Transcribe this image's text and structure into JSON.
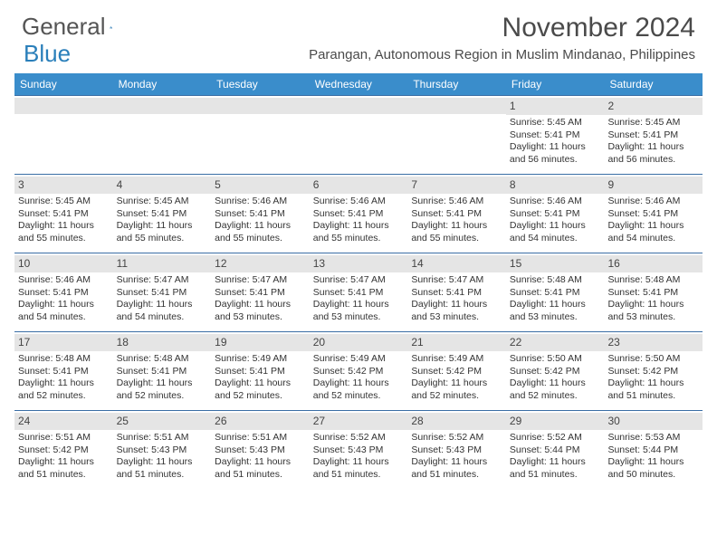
{
  "logo": {
    "text1": "General",
    "text2": "Blue"
  },
  "title": "November 2024",
  "location": "Parangan, Autonomous Region in Muslim Mindanao, Philippines",
  "colors": {
    "header_bar": "#3a8dcb",
    "week_border": "#3a6ea5",
    "date_bg": "#e5e5e5",
    "text": "#333333",
    "title_text": "#4a4a4a",
    "logo_blue": "#2a7fba"
  },
  "dayNames": [
    "Sunday",
    "Monday",
    "Tuesday",
    "Wednesday",
    "Thursday",
    "Friday",
    "Saturday"
  ],
  "weeks": [
    [
      {
        "blank": true
      },
      {
        "blank": true
      },
      {
        "blank": true
      },
      {
        "blank": true
      },
      {
        "blank": true
      },
      {
        "date": "1",
        "sunrise": "Sunrise: 5:45 AM",
        "sunset": "Sunset: 5:41 PM",
        "daylight": "Daylight: 11 hours and 56 minutes."
      },
      {
        "date": "2",
        "sunrise": "Sunrise: 5:45 AM",
        "sunset": "Sunset: 5:41 PM",
        "daylight": "Daylight: 11 hours and 56 minutes."
      }
    ],
    [
      {
        "date": "3",
        "sunrise": "Sunrise: 5:45 AM",
        "sunset": "Sunset: 5:41 PM",
        "daylight": "Daylight: 11 hours and 55 minutes."
      },
      {
        "date": "4",
        "sunrise": "Sunrise: 5:45 AM",
        "sunset": "Sunset: 5:41 PM",
        "daylight": "Daylight: 11 hours and 55 minutes."
      },
      {
        "date": "5",
        "sunrise": "Sunrise: 5:46 AM",
        "sunset": "Sunset: 5:41 PM",
        "daylight": "Daylight: 11 hours and 55 minutes."
      },
      {
        "date": "6",
        "sunrise": "Sunrise: 5:46 AM",
        "sunset": "Sunset: 5:41 PM",
        "daylight": "Daylight: 11 hours and 55 minutes."
      },
      {
        "date": "7",
        "sunrise": "Sunrise: 5:46 AM",
        "sunset": "Sunset: 5:41 PM",
        "daylight": "Daylight: 11 hours and 55 minutes."
      },
      {
        "date": "8",
        "sunrise": "Sunrise: 5:46 AM",
        "sunset": "Sunset: 5:41 PM",
        "daylight": "Daylight: 11 hours and 54 minutes."
      },
      {
        "date": "9",
        "sunrise": "Sunrise: 5:46 AM",
        "sunset": "Sunset: 5:41 PM",
        "daylight": "Daylight: 11 hours and 54 minutes."
      }
    ],
    [
      {
        "date": "10",
        "sunrise": "Sunrise: 5:46 AM",
        "sunset": "Sunset: 5:41 PM",
        "daylight": "Daylight: 11 hours and 54 minutes."
      },
      {
        "date": "11",
        "sunrise": "Sunrise: 5:47 AM",
        "sunset": "Sunset: 5:41 PM",
        "daylight": "Daylight: 11 hours and 54 minutes."
      },
      {
        "date": "12",
        "sunrise": "Sunrise: 5:47 AM",
        "sunset": "Sunset: 5:41 PM",
        "daylight": "Daylight: 11 hours and 53 minutes."
      },
      {
        "date": "13",
        "sunrise": "Sunrise: 5:47 AM",
        "sunset": "Sunset: 5:41 PM",
        "daylight": "Daylight: 11 hours and 53 minutes."
      },
      {
        "date": "14",
        "sunrise": "Sunrise: 5:47 AM",
        "sunset": "Sunset: 5:41 PM",
        "daylight": "Daylight: 11 hours and 53 minutes."
      },
      {
        "date": "15",
        "sunrise": "Sunrise: 5:48 AM",
        "sunset": "Sunset: 5:41 PM",
        "daylight": "Daylight: 11 hours and 53 minutes."
      },
      {
        "date": "16",
        "sunrise": "Sunrise: 5:48 AM",
        "sunset": "Sunset: 5:41 PM",
        "daylight": "Daylight: 11 hours and 53 minutes."
      }
    ],
    [
      {
        "date": "17",
        "sunrise": "Sunrise: 5:48 AM",
        "sunset": "Sunset: 5:41 PM",
        "daylight": "Daylight: 11 hours and 52 minutes."
      },
      {
        "date": "18",
        "sunrise": "Sunrise: 5:48 AM",
        "sunset": "Sunset: 5:41 PM",
        "daylight": "Daylight: 11 hours and 52 minutes."
      },
      {
        "date": "19",
        "sunrise": "Sunrise: 5:49 AM",
        "sunset": "Sunset: 5:41 PM",
        "daylight": "Daylight: 11 hours and 52 minutes."
      },
      {
        "date": "20",
        "sunrise": "Sunrise: 5:49 AM",
        "sunset": "Sunset: 5:42 PM",
        "daylight": "Daylight: 11 hours and 52 minutes."
      },
      {
        "date": "21",
        "sunrise": "Sunrise: 5:49 AM",
        "sunset": "Sunset: 5:42 PM",
        "daylight": "Daylight: 11 hours and 52 minutes."
      },
      {
        "date": "22",
        "sunrise": "Sunrise: 5:50 AM",
        "sunset": "Sunset: 5:42 PM",
        "daylight": "Daylight: 11 hours and 52 minutes."
      },
      {
        "date": "23",
        "sunrise": "Sunrise: 5:50 AM",
        "sunset": "Sunset: 5:42 PM",
        "daylight": "Daylight: 11 hours and 51 minutes."
      }
    ],
    [
      {
        "date": "24",
        "sunrise": "Sunrise: 5:51 AM",
        "sunset": "Sunset: 5:42 PM",
        "daylight": "Daylight: 11 hours and 51 minutes."
      },
      {
        "date": "25",
        "sunrise": "Sunrise: 5:51 AM",
        "sunset": "Sunset: 5:43 PM",
        "daylight": "Daylight: 11 hours and 51 minutes."
      },
      {
        "date": "26",
        "sunrise": "Sunrise: 5:51 AM",
        "sunset": "Sunset: 5:43 PM",
        "daylight": "Daylight: 11 hours and 51 minutes."
      },
      {
        "date": "27",
        "sunrise": "Sunrise: 5:52 AM",
        "sunset": "Sunset: 5:43 PM",
        "daylight": "Daylight: 11 hours and 51 minutes."
      },
      {
        "date": "28",
        "sunrise": "Sunrise: 5:52 AM",
        "sunset": "Sunset: 5:43 PM",
        "daylight": "Daylight: 11 hours and 51 minutes."
      },
      {
        "date": "29",
        "sunrise": "Sunrise: 5:52 AM",
        "sunset": "Sunset: 5:44 PM",
        "daylight": "Daylight: 11 hours and 51 minutes."
      },
      {
        "date": "30",
        "sunrise": "Sunrise: 5:53 AM",
        "sunset": "Sunset: 5:44 PM",
        "daylight": "Daylight: 11 hours and 50 minutes."
      }
    ]
  ]
}
